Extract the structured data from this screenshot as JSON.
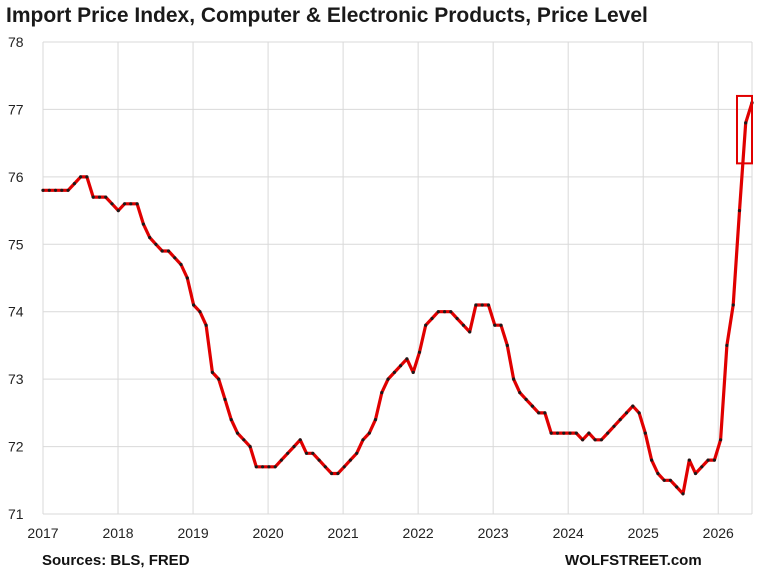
{
  "chart_data": {
    "type": "line",
    "title": "Import Price Index, Computer & Electronic Products, Price Level",
    "xlabel": "",
    "ylabel": "",
    "ylim": [
      71,
      78
    ],
    "xlim": [
      2017,
      2026.45
    ],
    "y_ticks": [
      "71",
      "72",
      "73",
      "74",
      "75",
      "76",
      "77",
      "78"
    ],
    "x_ticks": [
      "2017",
      "2018",
      "2019",
      "2020",
      "2021",
      "2022",
      "2023",
      "2024",
      "2025",
      "2026"
    ],
    "grid": true,
    "line_color": "#e00000",
    "marker_color": "#1a1a1a",
    "highlight_color": "#e00000",
    "highlight_range": {
      "x": [
        2026.25,
        2026.45
      ],
      "y": [
        76.2,
        77.2
      ]
    },
    "series": [
      {
        "values": [
          75.8,
          75.8,
          75.8,
          75.8,
          75.8,
          75.9,
          76.0,
          76.0,
          75.7,
          75.7,
          75.7,
          75.6,
          75.5,
          75.6,
          75.6,
          75.6,
          75.3,
          75.1,
          75.0,
          74.9,
          74.9,
          74.8,
          74.7,
          74.5,
          74.1,
          74.0,
          73.8,
          73.1,
          73.0,
          72.7,
          72.4,
          72.2,
          72.1,
          72.0,
          71.7,
          71.7,
          71.7,
          71.7,
          71.8,
          71.9,
          72.0,
          72.1,
          71.9,
          71.9,
          71.8,
          71.7,
          71.6,
          71.6,
          71.7,
          71.8,
          71.9,
          72.1,
          72.2,
          72.4,
          72.8,
          73.0,
          73.1,
          73.2,
          73.3,
          73.1,
          73.4,
          73.8,
          73.9,
          74.0,
          74.0,
          74.0,
          73.9,
          73.8,
          73.7,
          74.1,
          74.1,
          74.1,
          73.8,
          73.8,
          73.5,
          73.0,
          72.8,
          72.7,
          72.6,
          72.5,
          72.5,
          72.2,
          72.2,
          72.2,
          72.2,
          72.2,
          72.1,
          72.2,
          72.1,
          72.1,
          72.2,
          72.3,
          72.4,
          72.5,
          72.6,
          72.5,
          72.2,
          71.8,
          71.6,
          71.5,
          71.5,
          71.4,
          71.3,
          71.8,
          71.6,
          71.7,
          71.8,
          71.8,
          72.1,
          73.5,
          74.1,
          75.5,
          76.8,
          77.1
        ]
      }
    ]
  },
  "footer": {
    "source": "Sources: BLS, FRED",
    "brand": "WOLFSTREET.com"
  }
}
